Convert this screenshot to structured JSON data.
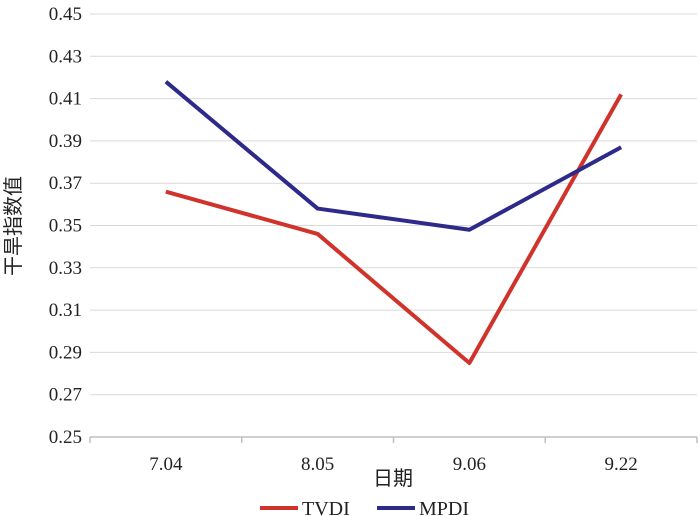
{
  "chart_data": {
    "type": "line",
    "title": "",
    "xlabel": "日期",
    "ylabel": "干旱指数值",
    "categories": [
      "7.04",
      "8.05",
      "9.06",
      "9.22"
    ],
    "series": [
      {
        "name": "TVDI",
        "color": "#d0332b",
        "values": [
          0.366,
          0.346,
          0.285,
          0.412
        ]
      },
      {
        "name": "MPDI",
        "color": "#2e2a8a",
        "values": [
          0.418,
          0.358,
          0.348,
          0.387
        ]
      }
    ],
    "ylim": [
      0.25,
      0.45
    ],
    "yticks": [
      "0.25",
      "0.27",
      "0.29",
      "0.31",
      "0.33",
      "0.35",
      "0.37",
      "0.39",
      "0.41",
      "0.43",
      "0.45"
    ],
    "grid": true,
    "legend_position": "bottom"
  }
}
